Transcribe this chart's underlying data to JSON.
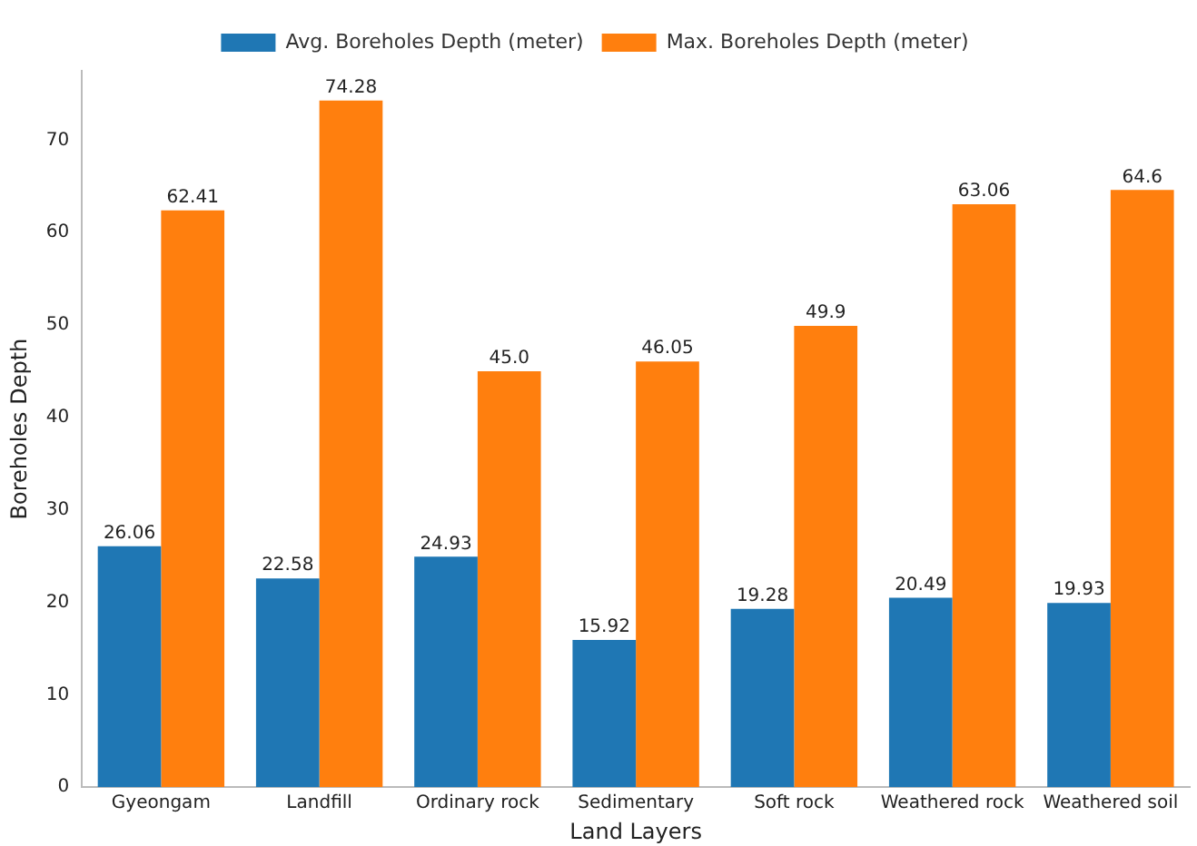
{
  "chart_data": {
    "type": "bar",
    "xlabel": "Land Layers",
    "ylabel": "Boreholes Depth",
    "categories": [
      "Gyeongam",
      "Landfill",
      "Ordinary rock",
      "Sedimentary",
      "Soft rock",
      "Weathered rock",
      "Weathered soil"
    ],
    "series": [
      {
        "name": "Avg. Boreholes Depth (meter)",
        "color": "#1f77b4",
        "values": [
          26.06,
          22.58,
          24.93,
          15.92,
          19.28,
          20.49,
          19.93
        ],
        "value_labels": [
          "26.06",
          "22.58",
          "24.93",
          "15.92",
          "19.28",
          "20.49",
          "19.93"
        ]
      },
      {
        "name": "Max. Boreholes Depth (meter)",
        "color": "#ff7f0e",
        "values": [
          62.41,
          74.28,
          45.0,
          46.05,
          49.9,
          63.06,
          64.6
        ],
        "value_labels": [
          "62.41",
          "74.28",
          "45.0",
          "46.05",
          "49.9",
          "63.06",
          "64.6"
        ]
      }
    ],
    "ylim": [
      0,
      77.5
    ],
    "yticks": [
      0,
      10,
      20,
      30,
      40,
      50,
      60,
      70
    ],
    "grid": false,
    "legend": "top"
  }
}
